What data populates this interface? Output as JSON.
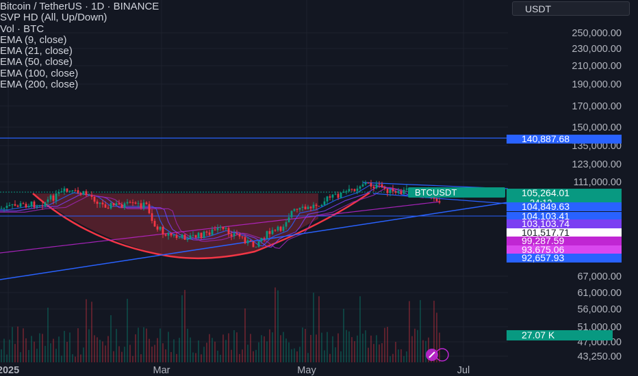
{
  "header": {
    "title": "Bitcoin / TetherUS · 1D · BINANCE",
    "indicators": [
      "SVP HD (All, Up/Down)",
      "Vol · BTC",
      "EMA (9, close)",
      "EMA (21, close)",
      "EMA (50, close)",
      "EMA (100, close)",
      "EMA (200, close)"
    ],
    "currency": "USDT"
  },
  "chart_data": {
    "type": "candlestick",
    "symbol": "BTCUSDT",
    "price_axis": {
      "ticks": [
        "250,000.00",
        "230,000.00",
        "210,000.00",
        "190,000.00",
        "170,000.00",
        "150,000.00",
        "135,000.00",
        "123,000.00",
        "111,000.00",
        "67,000.00",
        "61,000.00",
        "56,000.00",
        "51,000.00",
        "47,000.00",
        "43,250.00"
      ]
    },
    "time_axis": {
      "ticks": [
        "2025",
        "Mar",
        "May",
        "Jul"
      ]
    },
    "price_labels": [
      {
        "text": "140,887.68",
        "bg": "#2962ff",
        "fg": "#ffffff"
      },
      {
        "text": "105,264.01",
        "sub": "34:12",
        "bg": "#089981",
        "fg": "#ffffff"
      },
      {
        "text": "104,849.63",
        "bg": "#2962ff",
        "fg": "#ffffff"
      },
      {
        "text": "104,103.41",
        "bg": "#2962ff",
        "fg": "#ffffff"
      },
      {
        "text": "103,103.74",
        "bg": "#7b3ff2",
        "fg": "#ffffff"
      },
      {
        "text": "101,517.71",
        "bg": "#ffffff",
        "fg": "#131722"
      },
      {
        "text": "99,287.59",
        "bg": "#c026d3",
        "fg": "#ffffff"
      },
      {
        "text": "93,675.06",
        "bg": "#d946ef",
        "fg": "#ffffff"
      },
      {
        "text": "92,657.93",
        "bg": "#2962ff",
        "fg": "#ffffff"
      }
    ],
    "volume_label": {
      "text": "27.07 K",
      "bg": "#089981",
      "fg": "#ffffff"
    },
    "symbol_tag": "BTCUSDT",
    "resistance_level": 140887.68,
    "current_price": 105264.01,
    "colors": {
      "up": "#089981",
      "down": "#f23645",
      "cup": "#f23645",
      "trend": "#2962ff"
    }
  }
}
